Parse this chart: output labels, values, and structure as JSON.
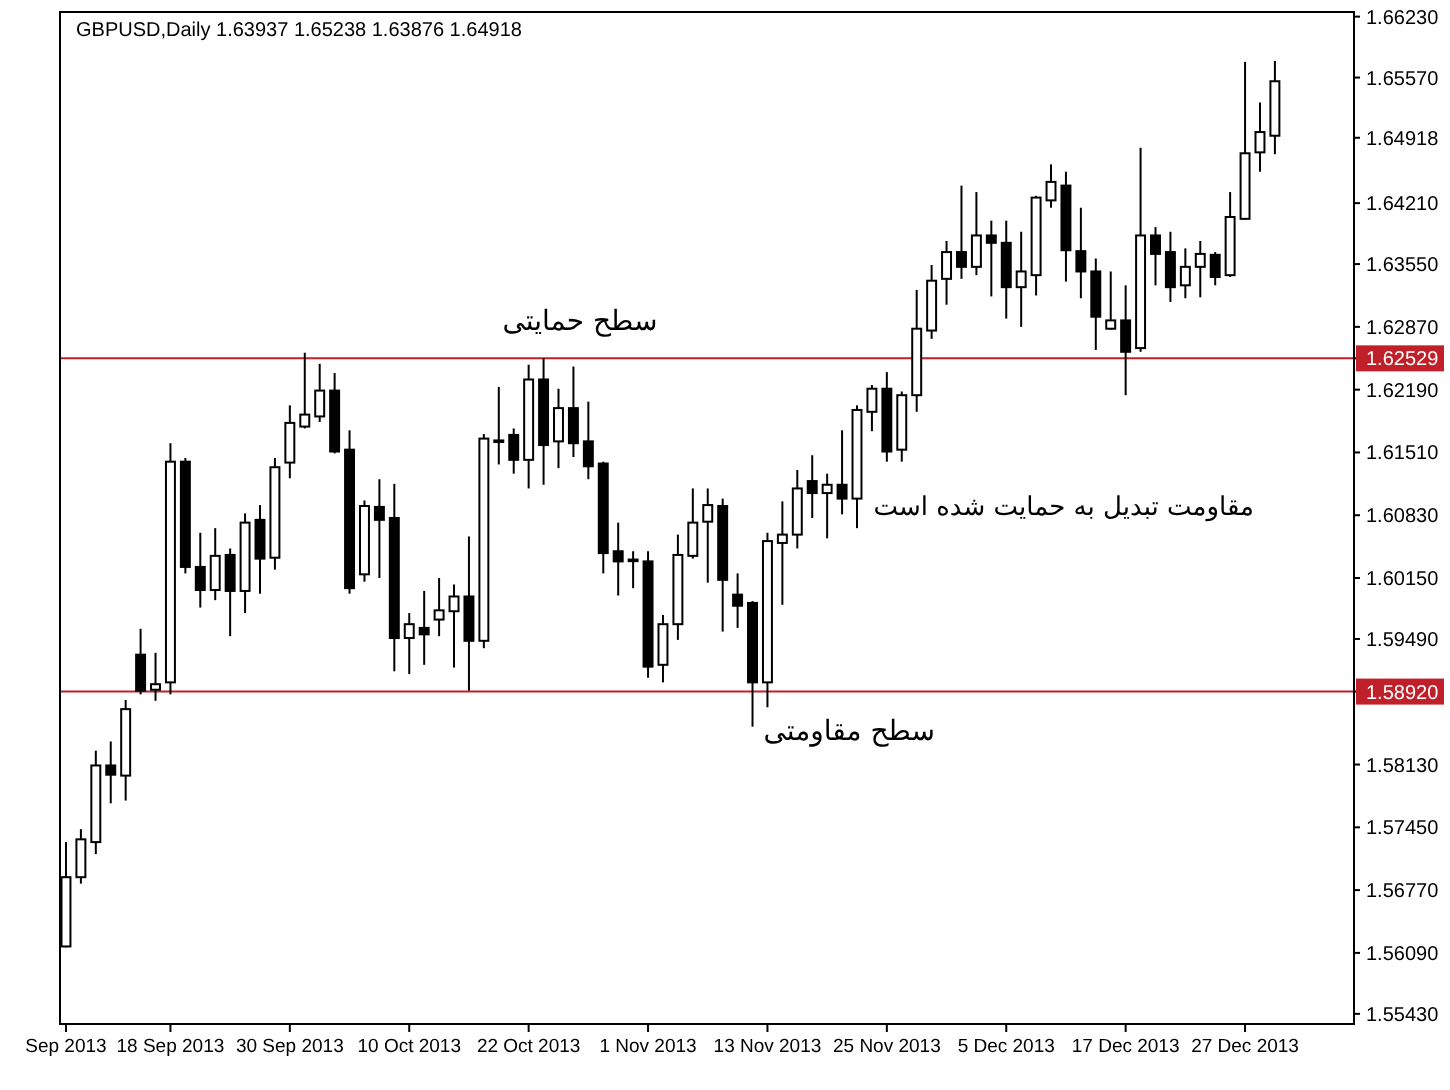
{
  "chart_data": {
    "type": "candlestick",
    "title": "GBPUSD,Daily 1.63937 1.65238 1.63876 1.64918",
    "color": "#000000",
    "categories": [
      "Sep 2013",
      null,
      null,
      null,
      null,
      null,
      null,
      "18 Sep 2013",
      null,
      null,
      null,
      null,
      null,
      null,
      null,
      "30 Sep 2013",
      null,
      null,
      null,
      null,
      null,
      null,
      null,
      "10 Oct 2013",
      null,
      null,
      null,
      null,
      null,
      null,
      null,
      "22 Oct 2013",
      null,
      null,
      null,
      null,
      null,
      null,
      null,
      "1 Nov 2013",
      null,
      null,
      null,
      null,
      null,
      null,
      null,
      "13 Nov 2013",
      null,
      null,
      null,
      null,
      null,
      null,
      null,
      "25 Nov 2013",
      null,
      null,
      null,
      null,
      null,
      null,
      null,
      "5 Dec 2013",
      null,
      null,
      null,
      null,
      null,
      null,
      null,
      "17 Dec 2013",
      null,
      null,
      null,
      null,
      null,
      null,
      null,
      "27 Dec 2013",
      null,
      null
    ],
    "ohlc": [
      [
        1.5616,
        1.5729,
        1.5615,
        1.5691
      ],
      [
        1.5691,
        1.5743,
        1.5684,
        1.5732
      ],
      [
        1.5729,
        1.5828,
        1.5716,
        1.5812
      ],
      [
        1.5812,
        1.5838,
        1.5771,
        1.5802
      ],
      [
        1.5801,
        1.5883,
        1.5774,
        1.5873
      ],
      [
        1.5932,
        1.596,
        1.5889,
        1.5893
      ],
      [
        1.5894,
        1.5934,
        1.5882,
        1.59
      ],
      [
        1.5902,
        1.6161,
        1.5889,
        1.6141
      ],
      [
        1.6141,
        1.6145,
        1.602,
        1.6027
      ],
      [
        1.6027,
        1.6064,
        1.5983,
        1.6002
      ],
      [
        1.6002,
        1.6069,
        1.5991,
        1.6039
      ],
      [
        1.604,
        1.6047,
        1.5952,
        1.6001
      ],
      [
        1.6001,
        1.6085,
        1.5977,
        1.6075
      ],
      [
        1.6078,
        1.6094,
        1.5998,
        1.6036
      ],
      [
        1.6037,
        1.6145,
        1.6024,
        1.6135
      ],
      [
        1.614,
        1.6202,
        1.6123,
        1.6183
      ],
      [
        1.6179,
        1.6259,
        1.6177,
        1.6192
      ],
      [
        1.619,
        1.6247,
        1.6184,
        1.6218
      ],
      [
        1.6218,
        1.6237,
        1.615,
        1.6152
      ],
      [
        1.6154,
        1.6175,
        1.5998,
        1.6004
      ],
      [
        1.6019,
        1.6099,
        1.6011,
        1.6093
      ],
      [
        1.6092,
        1.6122,
        1.6015,
        1.6078
      ],
      [
        1.608,
        1.6117,
        1.5914,
        1.595
      ],
      [
        1.595,
        1.5977,
        1.5911,
        1.5965
      ],
      [
        1.5961,
        1.6001,
        1.5921,
        1.5954
      ],
      [
        1.597,
        1.6015,
        1.5952,
        1.598
      ],
      [
        1.5979,
        1.6008,
        1.5918,
        1.5995
      ],
      [
        1.5995,
        1.606,
        1.5893,
        1.5947
      ],
      [
        1.5947,
        1.6171,
        1.5939,
        1.6166
      ],
      [
        1.6163,
        1.6222,
        1.6138,
        1.6164
      ],
      [
        1.617,
        1.6177,
        1.6128,
        1.6143
      ],
      [
        1.6143,
        1.6246,
        1.6112,
        1.623
      ],
      [
        1.623,
        1.6253,
        1.6116,
        1.6159
      ],
      [
        1.6163,
        1.622,
        1.6134,
        1.6199
      ],
      [
        1.6199,
        1.6244,
        1.6146,
        1.6161
      ],
      [
        1.6163,
        1.6206,
        1.6122,
        1.6136
      ],
      [
        1.6139,
        1.6141,
        1.602,
        1.6042
      ],
      [
        1.6044,
        1.6075,
        1.5996,
        1.6033
      ],
      [
        1.6035,
        1.6044,
        1.6004,
        1.6034
      ],
      [
        1.6033,
        1.6044,
        1.5907,
        1.5919
      ],
      [
        1.5921,
        1.5975,
        1.5902,
        1.5965
      ],
      [
        1.5965,
        1.6062,
        1.5948,
        1.604
      ],
      [
        1.6039,
        1.6112,
        1.6036,
        1.6075
      ],
      [
        1.6076,
        1.6112,
        1.601,
        1.6094
      ],
      [
        1.6093,
        1.6101,
        1.5957,
        1.6013
      ],
      [
        1.5997,
        1.602,
        1.5961,
        1.5985
      ],
      [
        1.5988,
        1.599,
        1.5854,
        1.5902
      ],
      [
        1.5902,
        1.6064,
        1.5875,
        1.6055
      ],
      [
        1.6053,
        1.6098,
        1.5986,
        1.6062
      ],
      [
        1.6062,
        1.6132,
        1.6047,
        1.6112
      ],
      [
        1.612,
        1.6148,
        1.608,
        1.6107
      ],
      [
        1.6107,
        1.6128,
        1.6058,
        1.6116
      ],
      [
        1.6116,
        1.6175,
        1.6084,
        1.6101
      ],
      [
        1.6101,
        1.6202,
        1.6069,
        1.6197
      ],
      [
        1.6195,
        1.6224,
        1.6174,
        1.622
      ],
      [
        1.622,
        1.6238,
        1.6141,
        1.6152
      ],
      [
        1.6154,
        1.6217,
        1.6141,
        1.6213
      ],
      [
        1.6213,
        1.6327,
        1.6195,
        1.6285
      ],
      [
        1.6283,
        1.6354,
        1.6274,
        1.6337
      ],
      [
        1.6339,
        1.638,
        1.6311,
        1.6368
      ],
      [
        1.6368,
        1.644,
        1.6339,
        1.6352
      ],
      [
        1.6352,
        1.6433,
        1.6343,
        1.6386
      ],
      [
        1.6386,
        1.6402,
        1.632,
        1.6378
      ],
      [
        1.6378,
        1.6402,
        1.6296,
        1.633
      ],
      [
        1.633,
        1.639,
        1.6287,
        1.6347
      ],
      [
        1.6343,
        1.6429,
        1.6321,
        1.6427
      ],
      [
        1.6424,
        1.6463,
        1.6416,
        1.6444
      ],
      [
        1.644,
        1.6455,
        1.6336,
        1.637
      ],
      [
        1.6369,
        1.6416,
        1.6318,
        1.6347
      ],
      [
        1.6347,
        1.6361,
        1.6262,
        1.6298
      ],
      [
        1.6285,
        1.6347,
        1.6284,
        1.6294
      ],
      [
        1.6294,
        1.6332,
        1.6213,
        1.626
      ],
      [
        1.6264,
        1.6481,
        1.626,
        1.6386
      ],
      [
        1.6386,
        1.6395,
        1.6332,
        1.6366
      ],
      [
        1.6368,
        1.639,
        1.6314,
        1.633
      ],
      [
        1.6332,
        1.6372,
        1.6318,
        1.6352
      ],
      [
        1.6352,
        1.638,
        1.6319,
        1.6366
      ],
      [
        1.6365,
        1.6368,
        1.6332,
        1.6341
      ],
      [
        1.6343,
        1.6433,
        1.6341,
        1.6406
      ],
      [
        1.6404,
        1.6574,
        1.6403,
        1.6475
      ],
      [
        1.6476,
        1.653,
        1.6455,
        1.6498
      ],
      [
        1.6494,
        1.6575,
        1.6474,
        1.6553
      ]
    ],
    "ylim": [
      1.5532,
      1.6628
    ],
    "yticks": [
      {
        "value": 1.6623,
        "label": "1.66230"
      },
      {
        "value": 1.6557,
        "label": "1.65570"
      },
      {
        "value": 1.64918,
        "label": "1.64918"
      },
      {
        "value": 1.6421,
        "label": "1.64210"
      },
      {
        "value": 1.6355,
        "label": "1.63550"
      },
      {
        "value": 1.6287,
        "label": "1.62870"
      },
      {
        "value": 1.62529,
        "label": "1.62529"
      },
      {
        "value": 1.6219,
        "label": "1.62190"
      },
      {
        "value": 1.6151,
        "label": "1.61510"
      },
      {
        "value": 1.6083,
        "label": "1.60830"
      },
      {
        "value": 1.6015,
        "label": "1.60150"
      },
      {
        "value": 1.5949,
        "label": "1.59490"
      },
      {
        "value": 1.5892,
        "label": "1.58920"
      },
      {
        "value": 1.5813,
        "label": "1.58130"
      },
      {
        "value": 1.5745,
        "label": "1.57450"
      },
      {
        "value": 1.5677,
        "label": "1.56770"
      },
      {
        "value": 1.5609,
        "label": "1.56090"
      },
      {
        "value": 1.5543,
        "label": "1.55430"
      }
    ],
    "ref_lines": [
      {
        "axis": "y",
        "value": 1.62529,
        "label": "سطح حمایتی",
        "color": "#c0202a"
      },
      {
        "axis": "y",
        "value": 1.5892,
        "label": "سطح مقاومتی",
        "color": "#c0202a"
      }
    ],
    "annotations": [
      "مقاومت تبدیل به حمایت شده است"
    ],
    "grid": false
  }
}
